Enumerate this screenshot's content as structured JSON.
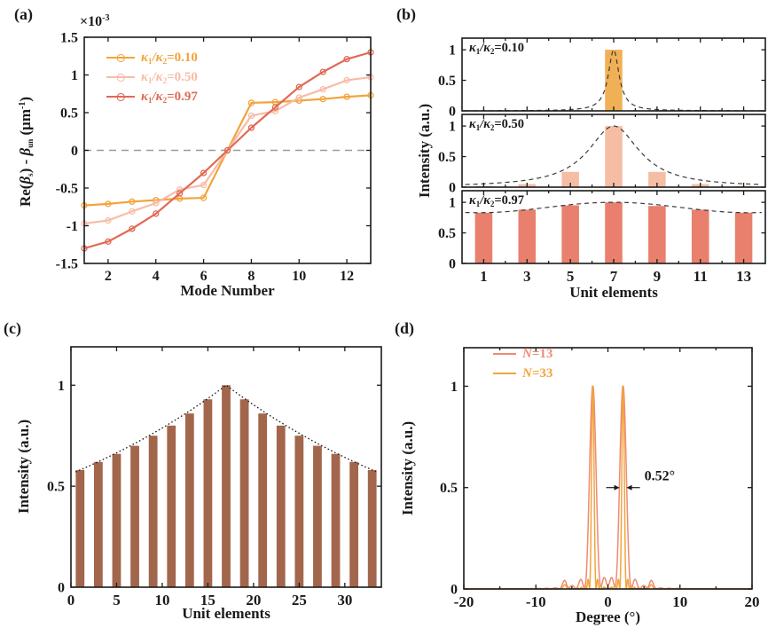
{
  "colors": {
    "orange": "#F2A43C",
    "salmon": "#F7BCA7",
    "coral": "#E06954",
    "orange_bar": "#F0B055",
    "salmon_bar": "#F6BDA5",
    "coral_bar": "#E8806D",
    "brown": "#A2664C",
    "n13": "#EF8A77",
    "axis": "#1A1A1A",
    "zero_dash": "#9A9A9A",
    "envelope": "#3A3A3A"
  },
  "panels": {
    "a": {
      "label": "(a)",
      "xlabel": "Mode Number",
      "scale": {
        "base": "×10",
        "sup": "-3"
      },
      "ylabel": {
        "pre": "Re(",
        "beta1": "β",
        "sub1": "s",
        "mid": ") - ",
        "beta2": "β",
        "sub2": "un",
        "unit": " (μm",
        "sup": "-1",
        "close": ")"
      },
      "legend": [
        {
          "pre": "κ",
          "s1": "1",
          "mid": "/κ",
          "s2": "2",
          "val": "=0.10",
          "color_key": "orange"
        },
        {
          "pre": "κ",
          "s1": "1",
          "mid": "/κ",
          "s2": "2",
          "val": "=0.50",
          "color_key": "salmon"
        },
        {
          "pre": "κ",
          "s1": "1",
          "mid": "/κ",
          "s2": "2",
          "val": "=0.97",
          "color_key": "coral"
        }
      ]
    },
    "b": {
      "label": "(b)",
      "xlabel": "Unit elements",
      "ylabel": "Intensity (a.u.)",
      "insets": [
        {
          "pre": "κ",
          "s1": "1",
          "mid": "/κ",
          "s2": "2",
          "val": "=0.10"
        },
        {
          "pre": "κ",
          "s1": "1",
          "mid": "/κ",
          "s2": "2",
          "val": "=0.50"
        },
        {
          "pre": "κ",
          "s1": "1",
          "mid": "/κ",
          "s2": "2",
          "val": "=0.97"
        }
      ]
    },
    "c": {
      "label": "(c)",
      "xlabel": "Unit elements",
      "ylabel": "Intensity (a.u.)"
    },
    "d": {
      "label": "(d)",
      "xlabel": "Degree (°)",
      "ylabel": "Intensity (a.u.)",
      "legend": [
        {
          "n": "N",
          "val": "=13",
          "color_key": "n13"
        },
        {
          "n": "N",
          "val": "=33",
          "color_key": "orange"
        }
      ],
      "annotation": "0.52°"
    }
  },
  "chart_data": [
    {
      "id": "a",
      "type": "line",
      "xlabel": "Mode Number",
      "ylabel": "Re(βs) - βun (μm⁻¹), ×10⁻³",
      "x": [
        1,
        2,
        3,
        4,
        5,
        6,
        7,
        8,
        9,
        10,
        11,
        12,
        13
      ],
      "xticks": [
        2,
        4,
        6,
        8,
        10,
        12
      ],
      "xlim": [
        1,
        13
      ],
      "yticks": [
        -1.5,
        -1,
        -0.5,
        0,
        0.5,
        1,
        1.5
      ],
      "ylim": [
        -1.5,
        1.5
      ],
      "zero_dashed_line": true,
      "series": [
        {
          "name": "κ1/κ2=0.10",
          "color_key": "orange",
          "values": [
            -0.73,
            -0.71,
            -0.68,
            -0.66,
            -0.64,
            -0.63,
            0,
            0.63,
            0.64,
            0.66,
            0.68,
            0.71,
            0.73
          ]
        },
        {
          "name": "κ1/κ2=0.50",
          "color_key": "salmon",
          "values": [
            -0.97,
            -0.93,
            -0.81,
            -0.7,
            -0.52,
            -0.46,
            0,
            0.46,
            0.52,
            0.7,
            0.81,
            0.93,
            0.97
          ]
        },
        {
          "name": "κ1/κ2=0.97",
          "color_key": "coral",
          "values": [
            -1.3,
            -1.21,
            -1.04,
            -0.84,
            -0.57,
            -0.3,
            0,
            0.3,
            0.57,
            0.84,
            1.04,
            1.21,
            1.3
          ]
        }
      ]
    },
    {
      "id": "b",
      "type": "bar-triptych",
      "xlabel": "Unit elements",
      "ylabel": "Intensity (a.u.)",
      "categories": [
        1,
        3,
        5,
        7,
        9,
        11,
        13
      ],
      "xlim": [
        0,
        14
      ],
      "ylim": [
        0,
        1.19
      ],
      "yticks": [
        0,
        0.5,
        1
      ],
      "bar_width": 0.8,
      "subplots": [
        {
          "label": "κ1/κ2=0.10",
          "color_key": "orange_bar",
          "values": [
            0.005,
            0.008,
            0.015,
            1.0,
            0.015,
            0.008,
            0.005
          ],
          "envelope": {
            "kind": "lorentzian",
            "center": 7,
            "width": 0.3
          }
        },
        {
          "label": "κ1/κ2=0.50",
          "color_key": "salmon_bar",
          "values": [
            0.02,
            0.05,
            0.25,
            1.0,
            0.25,
            0.05,
            0.02
          ],
          "envelope": {
            "kind": "lorentzian",
            "center": 7,
            "width": 1.45
          }
        },
        {
          "label": "κ1/κ2=0.97",
          "color_key": "coral_bar",
          "values": [
            0.83,
            0.88,
            0.95,
            1.0,
            0.94,
            0.88,
            0.83
          ],
          "envelope": {
            "kind": "cos2",
            "center": 7,
            "base": 0.83,
            "amp": 0.17,
            "period": 12.5
          }
        }
      ]
    },
    {
      "id": "c",
      "type": "bar",
      "xlabel": "Unit elements",
      "ylabel": "Intensity (a.u.)",
      "positions": [
        1,
        3,
        5,
        7,
        9,
        11,
        13,
        15,
        17,
        19,
        21,
        23,
        25,
        27,
        29,
        31,
        33
      ],
      "values": [
        0.58,
        0.62,
        0.66,
        0.7,
        0.75,
        0.8,
        0.86,
        0.93,
        1.0,
        0.93,
        0.86,
        0.8,
        0.75,
        0.7,
        0.66,
        0.62,
        0.58
      ],
      "xticks": [
        0,
        5,
        10,
        15,
        20,
        25,
        30
      ],
      "xlim": [
        0,
        34
      ],
      "ylim": [
        0,
        1.19
      ],
      "yticks": [
        0,
        0.5,
        1
      ],
      "bar_width": 0.95,
      "color_key": "brown",
      "envelope": {
        "kind": "exp",
        "center": 17,
        "k": 0.034
      }
    },
    {
      "id": "d",
      "type": "peaks",
      "xlabel": "Degree (°)",
      "ylabel": "Intensity (a.u.)",
      "xticks": [
        -20,
        -10,
        0,
        10,
        20
      ],
      "xminor": [
        -15,
        -5,
        5,
        15
      ],
      "xlim": [
        -20,
        20
      ],
      "ylim": [
        0,
        1.19
      ],
      "yticks": [
        0,
        0.5,
        1
      ],
      "peak_centers_deg": [
        -2.1,
        2.1
      ],
      "series": [
        {
          "name": "N=13",
          "color_key": "n13",
          "N": 13,
          "a_per_deg": 0.2094,
          "side_bumps": [
            {
              "x": -6,
              "h": 0.035,
              "w": 0.35
            },
            {
              "x": 6,
              "h": 0.035,
              "w": 0.35
            }
          ]
        },
        {
          "name": "N=33",
          "color_key": "orange",
          "N": 33,
          "a_per_deg": 0.2094,
          "side_bumps": [
            {
              "x": -6,
              "h": 0.02,
              "w": 0.3
            },
            {
              "x": 6,
              "h": 0.02,
              "w": 0.3
            }
          ]
        }
      ],
      "annotation": {
        "text": "0.52°",
        "x_deg": 2.1,
        "y": 0.5
      }
    }
  ]
}
